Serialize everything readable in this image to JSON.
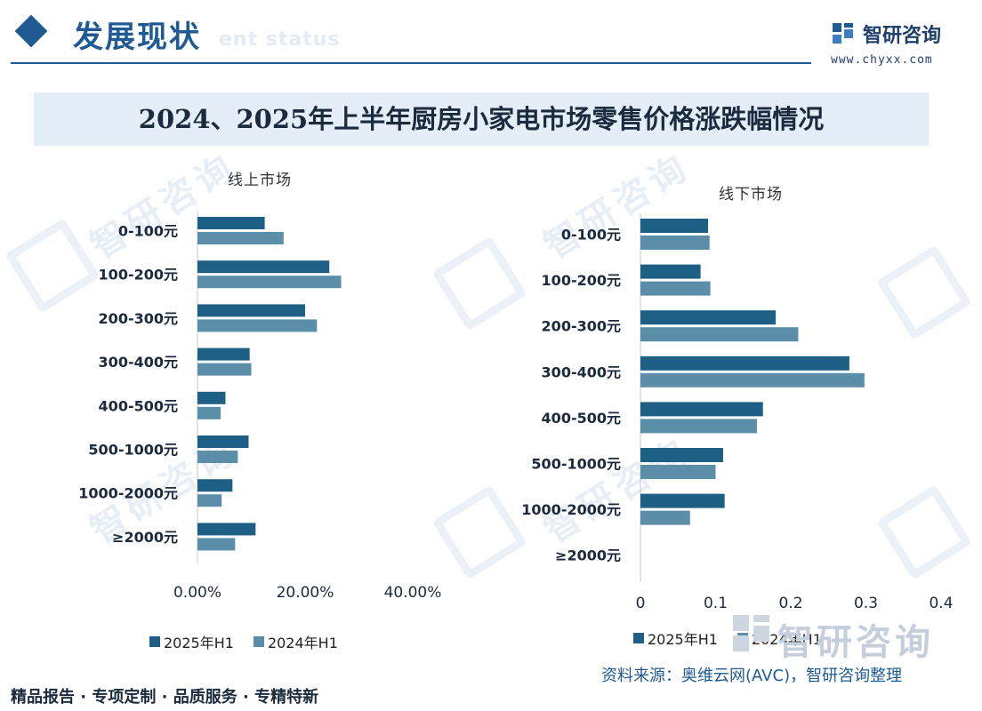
{
  "header": {
    "section_title": "发展现状",
    "section_subtitle": "ent status",
    "brand_name": "智研咨询",
    "brand_url": "www.chyxx.com"
  },
  "main_title": "2024、2025年上半年厨房小家电市场零售价格涨跌幅情况",
  "watermark_text": "智研咨询",
  "colors": {
    "primary": "#1f5a93",
    "series_2025": "#1e5f86",
    "series_2024": "#5b8ea8"
  },
  "chart_data": [
    {
      "type": "bar",
      "orientation": "horizontal",
      "title": "线上市场",
      "categories": [
        "0-100元",
        "100-200元",
        "200-300元",
        "300-400元",
        "400-500元",
        "500-1000元",
        "1000-2000元",
        "≥2000元"
      ],
      "series": [
        {
          "name": "2025年H1",
          "values": [
            0.125,
            0.245,
            0.2,
            0.097,
            0.052,
            0.095,
            0.065,
            0.108
          ]
        },
        {
          "name": "2024年H1",
          "values": [
            0.16,
            0.267,
            0.222,
            0.1,
            0.043,
            0.075,
            0.045,
            0.07
          ]
        }
      ],
      "xlim": [
        0,
        0.4
      ],
      "xticks": [
        "0.00%",
        "20.00%",
        "40.00%"
      ],
      "legend": "bottom"
    },
    {
      "type": "bar",
      "orientation": "horizontal",
      "title": "线下市场",
      "categories": [
        "0-100元",
        "100-200元",
        "200-300元",
        "300-400元",
        "400-500元",
        "500-1000元",
        "1000-2000元",
        "≥2000元"
      ],
      "series": [
        {
          "name": "2025年H1",
          "values": [
            0.09,
            0.08,
            0.18,
            0.278,
            0.163,
            0.11,
            0.112,
            0
          ]
        },
        {
          "name": "2024年H1",
          "values": [
            0.092,
            0.093,
            0.21,
            0.298,
            0.155,
            0.1,
            0.066,
            0
          ]
        }
      ],
      "xlim": [
        0,
        0.4
      ],
      "xticks": [
        "0",
        "0.1",
        "0.2",
        "0.3",
        "0.4"
      ],
      "legend": "bottom"
    }
  ],
  "legend_left": {
    "s1": "2025年H1",
    "s2": "2024年H1"
  },
  "legend_right": {
    "s1": "2025年H1",
    "s2": "2024年H1"
  },
  "source": "资料来源：奥维云网(AVC)，智研咨询整理",
  "footer": "精品报告 · 专项定制 · 品质服务 · 专精特新"
}
